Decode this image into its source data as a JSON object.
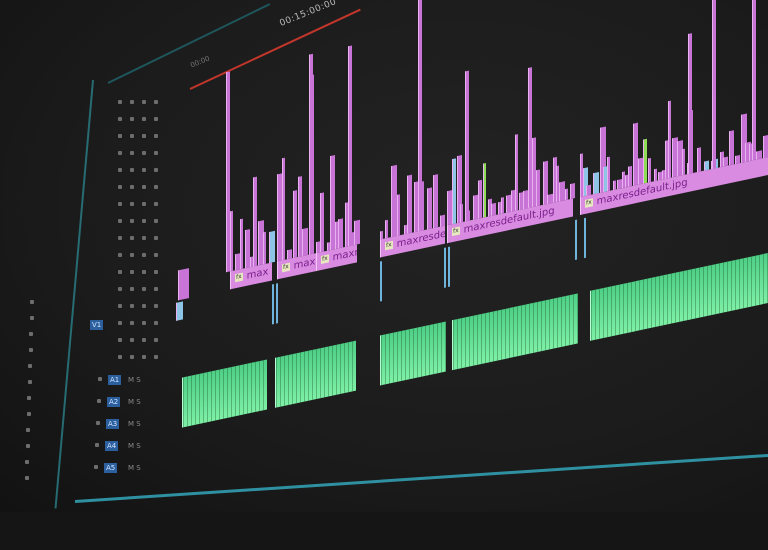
{
  "ruler": {
    "timecode": "00:15:00:00",
    "start_label": "00:00"
  },
  "video_clips": [
    {
      "label": "max",
      "start": 230,
      "end": 272
    },
    {
      "label": "maxi",
      "start": 277,
      "end": 316
    },
    {
      "label": "maxre",
      "start": 316,
      "end": 357
    },
    {
      "label": "maxresde",
      "start": 380,
      "end": 445
    },
    {
      "label": "maxresdefault.jpg",
      "start": 447,
      "end": 573
    },
    {
      "label": "maxresdefault.jpg",
      "start": 580,
      "end": 768
    }
  ],
  "audio_clips": [
    {
      "start": 182,
      "end": 266
    },
    {
      "start": 275,
      "end": 355
    },
    {
      "start": 380,
      "end": 445
    },
    {
      "start": 452,
      "end": 577
    },
    {
      "start": 590,
      "end": 768
    }
  ],
  "track_headers": {
    "video": [
      "V1"
    ],
    "audio": [
      "A1",
      "A2",
      "A3",
      "A4",
      "A5"
    ],
    "mute_solo": "M S"
  },
  "colors": {
    "video_clip": "#d88be0",
    "audio_clip": "#6fe39a",
    "playhead_range": "#c2362b",
    "panel_edge": "#33a6b8"
  }
}
